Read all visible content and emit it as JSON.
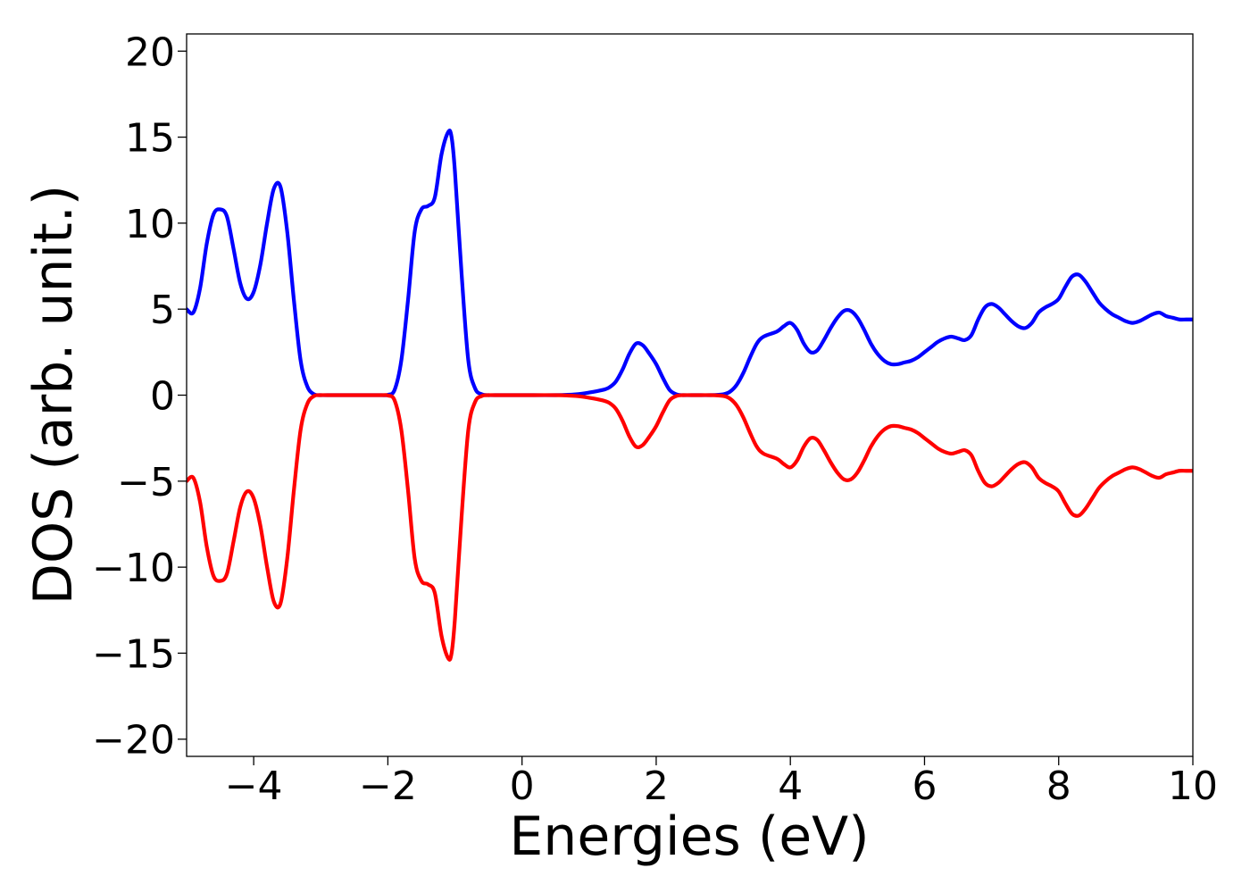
{
  "chart_data": {
    "type": "line",
    "title": "",
    "xlabel": "Energies (eV)",
    "ylabel": "DOS (arb. unit.)",
    "xlim": [
      -5,
      10
    ],
    "ylim": [
      -21,
      21
    ],
    "xticks": [
      -4,
      -2,
      0,
      2,
      4,
      6,
      8,
      10
    ],
    "xtick_labels": [
      "−4",
      "−2",
      "0",
      "2",
      "4",
      "6",
      "8",
      "10"
    ],
    "yticks": [
      20,
      15,
      10,
      5,
      0,
      -5,
      -10,
      -15,
      -20
    ],
    "ytick_labels": [
      "20",
      "15",
      "10",
      "5",
      "0",
      "−5",
      "−10",
      "−15",
      "−20"
    ],
    "grid": false,
    "legend": "none",
    "series": [
      {
        "color": "#0000ff",
        "x": [
          -5.0,
          -4.9,
          -4.8,
          -4.7,
          -4.6,
          -4.5,
          -4.4,
          -4.3,
          -4.2,
          -4.1,
          -4.0,
          -3.9,
          -3.8,
          -3.7,
          -3.6,
          -3.5,
          -3.4,
          -3.3,
          -3.2,
          -3.1,
          -3.0,
          -2.9,
          -2.5,
          -2.1,
          -2.0,
          -1.9,
          -1.8,
          -1.7,
          -1.6,
          -1.5,
          -1.4,
          -1.3,
          -1.2,
          -1.1,
          -1.05,
          -1.0,
          -0.9,
          -0.8,
          -0.7,
          -0.6,
          -0.5,
          -0.4,
          0.0,
          0.5,
          0.8,
          1.0,
          1.2,
          1.3,
          1.4,
          1.5,
          1.6,
          1.7,
          1.8,
          1.9,
          2.0,
          2.1,
          2.2,
          2.3,
          2.4,
          2.6,
          2.8,
          3.0,
          3.1,
          3.2,
          3.3,
          3.4,
          3.5,
          3.6,
          3.8,
          3.9,
          4.0,
          4.1,
          4.2,
          4.3,
          4.4,
          4.5,
          4.6,
          4.7,
          4.8,
          4.9,
          5.0,
          5.1,
          5.2,
          5.3,
          5.4,
          5.5,
          5.6,
          5.7,
          5.8,
          5.9,
          6.0,
          6.1,
          6.2,
          6.3,
          6.4,
          6.5,
          6.6,
          6.7,
          6.8,
          6.9,
          7.0,
          7.1,
          7.2,
          7.3,
          7.4,
          7.5,
          7.6,
          7.7,
          7.8,
          7.9,
          8.0,
          8.1,
          8.2,
          8.3,
          8.4,
          8.5,
          8.6,
          8.7,
          8.8,
          8.9,
          9.0,
          9.1,
          9.2,
          9.3,
          9.4,
          9.5,
          9.6,
          9.7,
          9.8,
          9.9,
          10.0
        ],
        "y": [
          5.0,
          4.8,
          6.2,
          8.8,
          10.5,
          10.8,
          10.4,
          8.5,
          6.5,
          5.6,
          6.0,
          7.6,
          10.0,
          12.0,
          12.1,
          9.5,
          5.5,
          2.0,
          0.5,
          0.05,
          0.0,
          0.0,
          0.0,
          0.0,
          0.02,
          0.3,
          2.0,
          5.5,
          9.5,
          10.8,
          11.0,
          11.5,
          14.0,
          15.3,
          15.0,
          13.0,
          7.0,
          2.0,
          0.4,
          0.05,
          0.0,
          0.0,
          0.0,
          0.0,
          0.05,
          0.15,
          0.3,
          0.45,
          0.8,
          1.5,
          2.4,
          3.0,
          2.9,
          2.4,
          1.8,
          1.0,
          0.3,
          0.05,
          0.0,
          0.0,
          0.0,
          0.05,
          0.2,
          0.6,
          1.3,
          2.2,
          3.0,
          3.4,
          3.7,
          4.0,
          4.2,
          3.8,
          3.0,
          2.5,
          2.6,
          3.2,
          3.9,
          4.5,
          4.9,
          4.9,
          4.5,
          3.8,
          3.0,
          2.4,
          2.0,
          1.8,
          1.8,
          1.9,
          2.0,
          2.2,
          2.5,
          2.8,
          3.1,
          3.3,
          3.4,
          3.3,
          3.2,
          3.5,
          4.4,
          5.1,
          5.3,
          5.1,
          4.7,
          4.3,
          4.0,
          3.9,
          4.2,
          4.8,
          5.1,
          5.3,
          5.6,
          6.3,
          6.9,
          7.0,
          6.6,
          6.0,
          5.4,
          5.0,
          4.7,
          4.5,
          4.3,
          4.2,
          4.3,
          4.5,
          4.7,
          4.8,
          4.6,
          4.5,
          4.4,
          4.4,
          4.4
        ]
      },
      {
        "color": "#ff0000",
        "x": [
          -5.0,
          -4.9,
          -4.8,
          -4.7,
          -4.6,
          -4.5,
          -4.4,
          -4.3,
          -4.2,
          -4.1,
          -4.0,
          -3.9,
          -3.8,
          -3.7,
          -3.6,
          -3.5,
          -3.4,
          -3.3,
          -3.2,
          -3.1,
          -3.0,
          -2.9,
          -2.5,
          -2.1,
          -2.0,
          -1.9,
          -1.8,
          -1.7,
          -1.6,
          -1.5,
          -1.4,
          -1.3,
          -1.2,
          -1.1,
          -1.05,
          -1.0,
          -0.9,
          -0.8,
          -0.7,
          -0.6,
          -0.5,
          -0.4,
          0.0,
          0.5,
          0.8,
          1.0,
          1.2,
          1.3,
          1.4,
          1.5,
          1.6,
          1.7,
          1.8,
          1.9,
          2.0,
          2.1,
          2.2,
          2.3,
          2.4,
          2.6,
          2.8,
          3.0,
          3.1,
          3.2,
          3.3,
          3.4,
          3.5,
          3.6,
          3.8,
          3.9,
          4.0,
          4.1,
          4.2,
          4.3,
          4.4,
          4.5,
          4.6,
          4.7,
          4.8,
          4.9,
          5.0,
          5.1,
          5.2,
          5.3,
          5.4,
          5.5,
          5.6,
          5.7,
          5.8,
          5.9,
          6.0,
          6.1,
          6.2,
          6.3,
          6.4,
          6.5,
          6.6,
          6.7,
          6.8,
          6.9,
          7.0,
          7.1,
          7.2,
          7.3,
          7.4,
          7.5,
          7.6,
          7.7,
          7.8,
          7.9,
          8.0,
          8.1,
          8.2,
          8.3,
          8.4,
          8.5,
          8.6,
          8.7,
          8.8,
          8.9,
          9.0,
          9.1,
          9.2,
          9.3,
          9.4,
          9.5,
          9.6,
          9.7,
          9.8,
          9.9,
          10.0
        ],
        "y": [
          -5.0,
          -4.8,
          -6.2,
          -8.8,
          -10.5,
          -10.8,
          -10.4,
          -8.5,
          -6.5,
          -5.6,
          -6.0,
          -7.6,
          -10.0,
          -12.0,
          -12.1,
          -9.5,
          -5.5,
          -2.0,
          -0.5,
          -0.05,
          0.0,
          0.0,
          0.0,
          0.0,
          -0.02,
          -0.3,
          -2.0,
          -5.5,
          -9.5,
          -10.8,
          -11.0,
          -11.5,
          -14.0,
          -15.3,
          -15.0,
          -13.0,
          -7.0,
          -2.0,
          -0.4,
          -0.05,
          0.0,
          0.0,
          0.0,
          0.0,
          -0.05,
          -0.15,
          -0.3,
          -0.45,
          -0.8,
          -1.5,
          -2.4,
          -3.0,
          -2.9,
          -2.4,
          -1.8,
          -1.0,
          -0.3,
          -0.05,
          0.0,
          0.0,
          0.0,
          -0.05,
          -0.2,
          -0.6,
          -1.3,
          -2.2,
          -3.0,
          -3.4,
          -3.7,
          -4.0,
          -4.2,
          -3.8,
          -3.0,
          -2.5,
          -2.6,
          -3.2,
          -3.9,
          -4.5,
          -4.9,
          -4.9,
          -4.5,
          -3.8,
          -3.0,
          -2.4,
          -2.0,
          -1.8,
          -1.8,
          -1.9,
          -2.0,
          -2.2,
          -2.5,
          -2.8,
          -3.1,
          -3.3,
          -3.4,
          -3.3,
          -3.2,
          -3.5,
          -4.4,
          -5.1,
          -5.3,
          -5.1,
          -4.7,
          -4.3,
          -4.0,
          -3.9,
          -4.2,
          -4.8,
          -5.1,
          -5.3,
          -5.6,
          -6.3,
          -6.9,
          -7.0,
          -6.6,
          -6.0,
          -5.4,
          -5.0,
          -4.7,
          -4.5,
          -4.3,
          -4.2,
          -4.3,
          -4.5,
          -4.7,
          -4.8,
          -4.6,
          -4.5,
          -4.4,
          -4.4,
          -4.4
        ]
      }
    ]
  }
}
